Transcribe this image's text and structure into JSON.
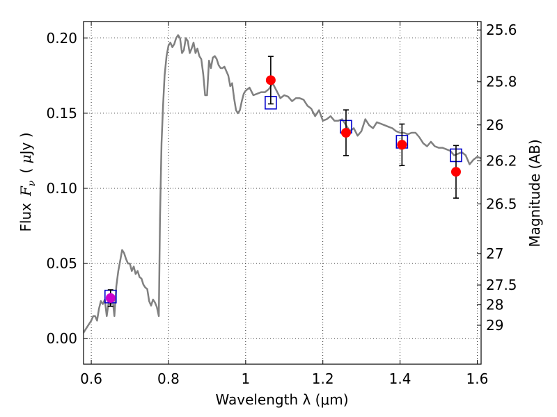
{
  "chart_data": {
    "type": "scatter",
    "title": "",
    "xlabel": "Wavelength  λ (μm)",
    "ylabel": "Flux  F_ν ( μJy )",
    "ylabel_parts": {
      "prefix": "Flux",
      "symbol": "F",
      "subscript": "ν",
      "unit_open": "( ",
      "unit_mu": "μ",
      "unit_rest": "Jy )"
    },
    "y2label": "Magnitude (AB)",
    "xlim": [
      0.58,
      1.61
    ],
    "ylim": [
      -0.017,
      0.211
    ],
    "grid": true,
    "grid_style": "dotted",
    "x_ticks": [
      {
        "value": 0.6,
        "label": "0.6"
      },
      {
        "value": 0.8,
        "label": "0.8"
      },
      {
        "value": 1.0,
        "label": "1"
      },
      {
        "value": 1.2,
        "label": "1.2"
      },
      {
        "value": 1.4,
        "label": "1.4"
      },
      {
        "value": 1.6,
        "label": "1.6"
      }
    ],
    "y_ticks": [
      {
        "value": 0.0,
        "label": "0.00"
      },
      {
        "value": 0.05,
        "label": "0.05"
      },
      {
        "value": 0.1,
        "label": "0.10"
      },
      {
        "value": 0.15,
        "label": "0.15"
      },
      {
        "value": 0.2,
        "label": "0.20"
      }
    ],
    "y2_ticks": [
      {
        "label": "25.6",
        "flux": 0.2054
      },
      {
        "label": "25.8",
        "flux": 0.1709
      },
      {
        "label": "26",
        "flux": 0.1422
      },
      {
        "label": "26.2",
        "flux": 0.1183
      },
      {
        "label": "26.5",
        "flux": 0.0897
      },
      {
        "label": "27",
        "flux": 0.0566
      },
      {
        "label": "27.5",
        "flux": 0.0357
      },
      {
        "label": "28",
        "flux": 0.0225
      },
      {
        "label": "29",
        "flux": 0.0089
      }
    ],
    "series": [
      {
        "kind": "model_spectrum",
        "color": "#808080",
        "points": [
          [
            0.575,
            0.002
          ],
          [
            0.59,
            0.008
          ],
          [
            0.6,
            0.012
          ],
          [
            0.605,
            0.015
          ],
          [
            0.61,
            0.015
          ],
          [
            0.615,
            0.012
          ],
          [
            0.62,
            0.02
          ],
          [
            0.625,
            0.025
          ],
          [
            0.63,
            0.023
          ],
          [
            0.635,
            0.026
          ],
          [
            0.64,
            0.015
          ],
          [
            0.645,
            0.024
          ],
          [
            0.65,
            0.022
          ],
          [
            0.655,
            0.027
          ],
          [
            0.66,
            0.015
          ],
          [
            0.665,
            0.035
          ],
          [
            0.67,
            0.045
          ],
          [
            0.675,
            0.052
          ],
          [
            0.68,
            0.059
          ],
          [
            0.685,
            0.057
          ],
          [
            0.69,
            0.053
          ],
          [
            0.695,
            0.05
          ],
          [
            0.7,
            0.05
          ],
          [
            0.705,
            0.045
          ],
          [
            0.71,
            0.048
          ],
          [
            0.715,
            0.043
          ],
          [
            0.72,
            0.045
          ],
          [
            0.725,
            0.041
          ],
          [
            0.73,
            0.04
          ],
          [
            0.735,
            0.036
          ],
          [
            0.74,
            0.034
          ],
          [
            0.745,
            0.033
          ],
          [
            0.75,
            0.025
          ],
          [
            0.755,
            0.022
          ],
          [
            0.76,
            0.026
          ],
          [
            0.765,
            0.024
          ],
          [
            0.77,
            0.021
          ],
          [
            0.775,
            0.015
          ],
          [
            0.778,
            0.08
          ],
          [
            0.782,
            0.13
          ],
          [
            0.786,
            0.155
          ],
          [
            0.79,
            0.175
          ],
          [
            0.795,
            0.188
          ],
          [
            0.8,
            0.195
          ],
          [
            0.805,
            0.197
          ],
          [
            0.81,
            0.194
          ],
          [
            0.815,
            0.196
          ],
          [
            0.82,
            0.2
          ],
          [
            0.825,
            0.202
          ],
          [
            0.83,
            0.2
          ],
          [
            0.835,
            0.19
          ],
          [
            0.84,
            0.192
          ],
          [
            0.845,
            0.2
          ],
          [
            0.85,
            0.198
          ],
          [
            0.855,
            0.19
          ],
          [
            0.86,
            0.193
          ],
          [
            0.865,
            0.197
          ],
          [
            0.87,
            0.19
          ],
          [
            0.875,
            0.193
          ],
          [
            0.88,
            0.188
          ],
          [
            0.885,
            0.186
          ],
          [
            0.89,
            0.176
          ],
          [
            0.895,
            0.162
          ],
          [
            0.9,
            0.162
          ],
          [
            0.905,
            0.185
          ],
          [
            0.91,
            0.18
          ],
          [
            0.915,
            0.187
          ],
          [
            0.92,
            0.188
          ],
          [
            0.925,
            0.186
          ],
          [
            0.93,
            0.182
          ],
          [
            0.935,
            0.18
          ],
          [
            0.94,
            0.18
          ],
          [
            0.945,
            0.181
          ],
          [
            0.95,
            0.178
          ],
          [
            0.955,
            0.175
          ],
          [
            0.96,
            0.168
          ],
          [
            0.965,
            0.17
          ],
          [
            0.97,
            0.16
          ],
          [
            0.975,
            0.152
          ],
          [
            0.98,
            0.15
          ],
          [
            0.985,
            0.152
          ],
          [
            0.99,
            0.158
          ],
          [
            0.995,
            0.163
          ],
          [
            1.0,
            0.165
          ],
          [
            1.01,
            0.167
          ],
          [
            1.02,
            0.162
          ],
          [
            1.03,
            0.163
          ],
          [
            1.04,
            0.164
          ],
          [
            1.05,
            0.164
          ],
          [
            1.06,
            0.166
          ],
          [
            1.065,
            0.168
          ],
          [
            1.07,
            0.17
          ],
          [
            1.08,
            0.165
          ],
          [
            1.09,
            0.16
          ],
          [
            1.1,
            0.162
          ],
          [
            1.11,
            0.161
          ],
          [
            1.12,
            0.158
          ],
          [
            1.13,
            0.16
          ],
          [
            1.14,
            0.16
          ],
          [
            1.15,
            0.159
          ],
          [
            1.16,
            0.155
          ],
          [
            1.17,
            0.153
          ],
          [
            1.18,
            0.148
          ],
          [
            1.19,
            0.152
          ],
          [
            1.2,
            0.145
          ],
          [
            1.21,
            0.146
          ],
          [
            1.22,
            0.148
          ],
          [
            1.23,
            0.145
          ],
          [
            1.24,
            0.145
          ],
          [
            1.25,
            0.146
          ],
          [
            1.26,
            0.142
          ],
          [
            1.27,
            0.138
          ],
          [
            1.28,
            0.14
          ],
          [
            1.29,
            0.135
          ],
          [
            1.3,
            0.138
          ],
          [
            1.31,
            0.146
          ],
          [
            1.32,
            0.142
          ],
          [
            1.33,
            0.14
          ],
          [
            1.34,
            0.144
          ],
          [
            1.35,
            0.143
          ],
          [
            1.36,
            0.142
          ],
          [
            1.37,
            0.141
          ],
          [
            1.38,
            0.14
          ],
          [
            1.39,
            0.138
          ],
          [
            1.4,
            0.137
          ],
          [
            1.41,
            0.137
          ],
          [
            1.42,
            0.136
          ],
          [
            1.43,
            0.137
          ],
          [
            1.44,
            0.137
          ],
          [
            1.45,
            0.134
          ],
          [
            1.46,
            0.13
          ],
          [
            1.47,
            0.128
          ],
          [
            1.48,
            0.131
          ],
          [
            1.49,
            0.128
          ],
          [
            1.5,
            0.127
          ],
          [
            1.51,
            0.127
          ],
          [
            1.52,
            0.126
          ],
          [
            1.53,
            0.125
          ],
          [
            1.54,
            0.122
          ],
          [
            1.55,
            0.123
          ],
          [
            1.56,
            0.124
          ],
          [
            1.57,
            0.122
          ],
          [
            1.58,
            0.116
          ],
          [
            1.59,
            0.119
          ],
          [
            1.6,
            0.121
          ],
          [
            1.61,
            0.12
          ]
        ]
      },
      {
        "kind": "model_photometry",
        "marker": "open-square",
        "color": "#0000cc",
        "x": [
          0.65,
          1.065,
          1.26,
          1.405,
          1.545
        ],
        "y": [
          0.028,
          0.157,
          0.141,
          0.131,
          0.122
        ]
      },
      {
        "kind": "observed_photometry",
        "marker": "filled-circle",
        "x": [
          0.65,
          1.065,
          1.26,
          1.405,
          1.545
        ],
        "y": [
          0.027,
          0.172,
          0.137,
          0.129,
          0.111
        ],
        "yerr": [
          0.0055,
          0.0158,
          0.0152,
          0.0138,
          0.0175
        ],
        "colors": [
          "#cc00cc",
          "#ff0000",
          "#ff0000",
          "#ff0000",
          "#ff0000"
        ]
      }
    ]
  }
}
